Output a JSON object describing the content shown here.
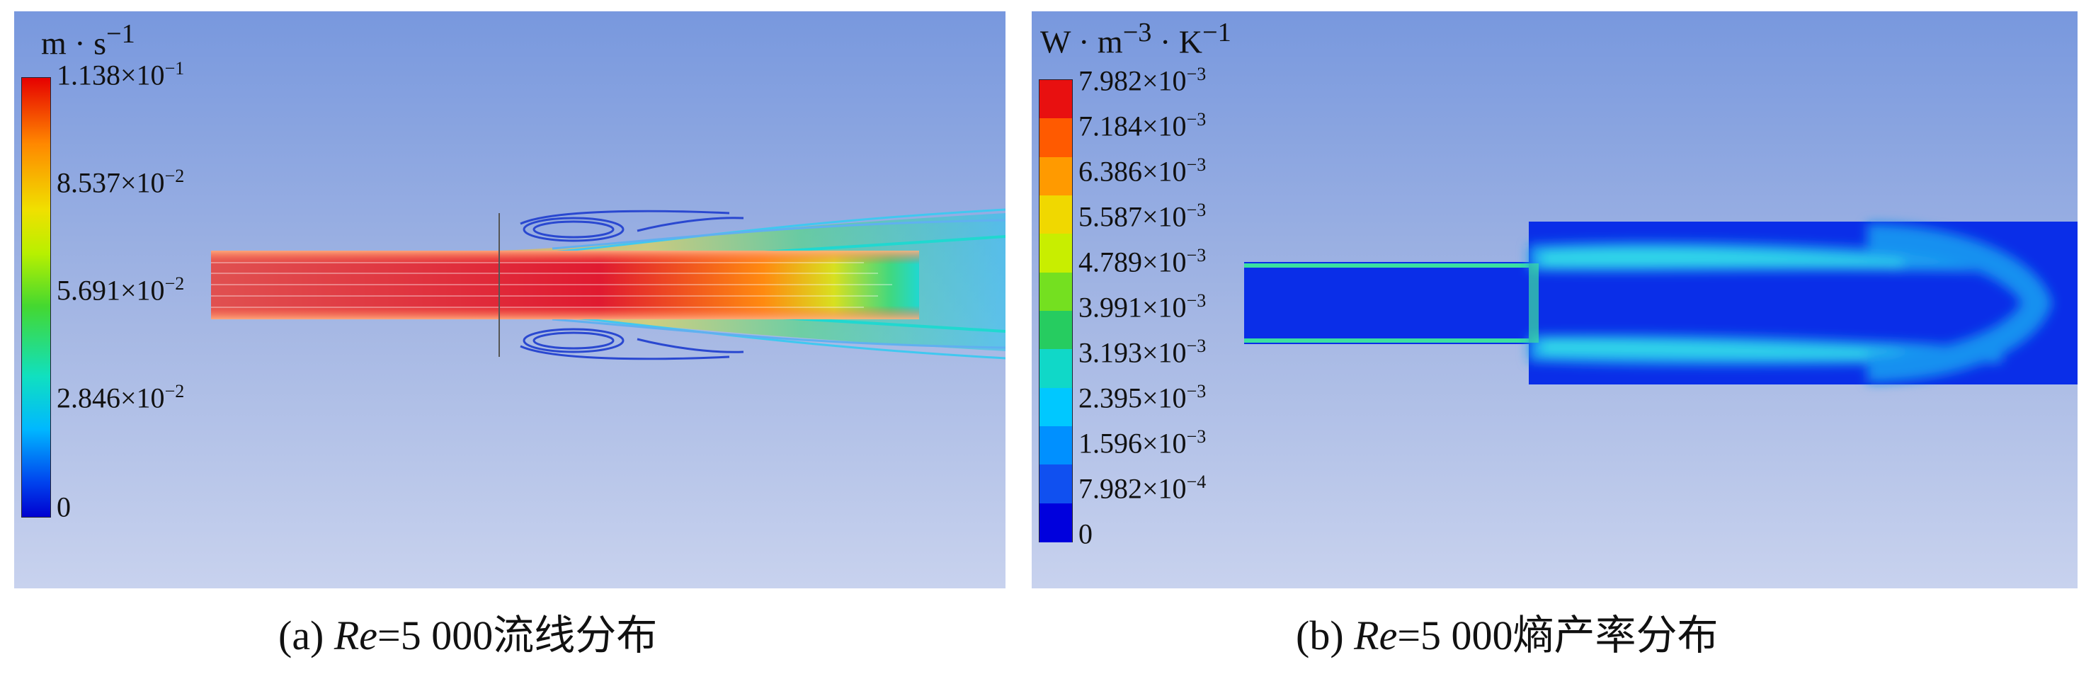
{
  "panel_a": {
    "unit": "m · s",
    "unit_exp": "−1",
    "ticks": [
      {
        "mant": "1.138×10",
        "exp": "−1"
      },
      {
        "mant": "8.537×10",
        "exp": "−2"
      },
      {
        "mant": "5.691×10",
        "exp": "−2"
      },
      {
        "mant": "2.846×10",
        "exp": "−2"
      },
      {
        "mant": "0",
        "exp": ""
      }
    ],
    "caption_prefix": "(a) ",
    "caption_re": "Re",
    "caption_suffix": "=5 000流线分布"
  },
  "panel_b": {
    "unit": "W · m",
    "unit_exp1": "−3",
    "unit_mid": " · K",
    "unit_exp2": "−1",
    "ticks": [
      {
        "mant": "7.982×10",
        "exp": "−3"
      },
      {
        "mant": "7.184×10",
        "exp": "−3"
      },
      {
        "mant": "6.386×10",
        "exp": "−3"
      },
      {
        "mant": "5.587×10",
        "exp": "−3"
      },
      {
        "mant": "4.789×10",
        "exp": "−3"
      },
      {
        "mant": "3.991×10",
        "exp": "−3"
      },
      {
        "mant": "3.193×10",
        "exp": "−3"
      },
      {
        "mant": "2.395×10",
        "exp": "−3"
      },
      {
        "mant": "1.596×10",
        "exp": "−3"
      },
      {
        "mant": "7.982×10",
        "exp": "−4"
      },
      {
        "mant": "0",
        "exp": ""
      }
    ],
    "step_colors": [
      "#e81010",
      "#ff5a00",
      "#ff9a00",
      "#f0d800",
      "#c8ee00",
      "#74e020",
      "#26cc60",
      "#10d8c8",
      "#00c8ff",
      "#0090ff",
      "#1050f0",
      "#0000dd"
    ],
    "caption_prefix": "(b) ",
    "caption_re": "Re",
    "caption_suffix": "=5 000熵产率分布"
  },
  "colors": {
    "background_top": "#7898de",
    "background_bottom": "#c8d2ee",
    "jet_core": "#e02020",
    "low_field": "#0a2ee8"
  }
}
